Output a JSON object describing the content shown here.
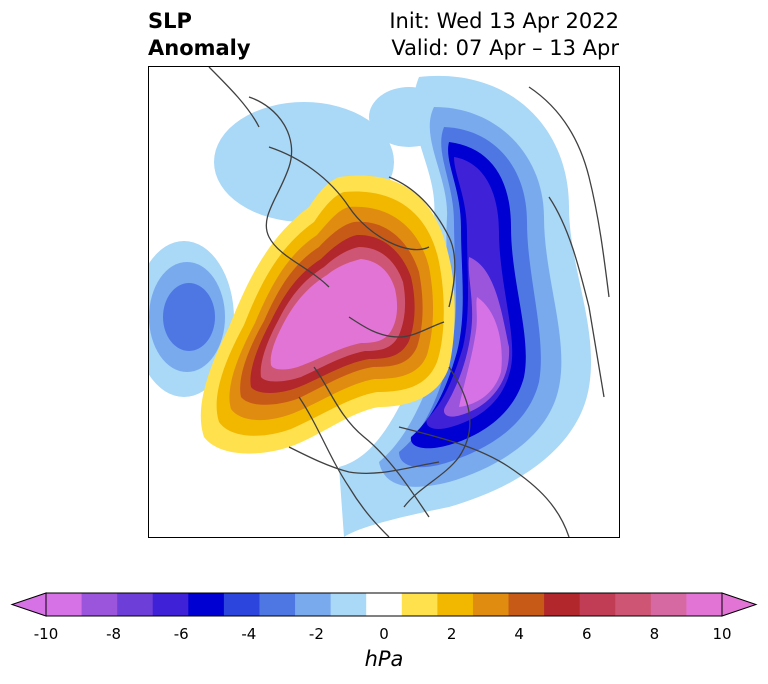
{
  "title": {
    "left_line1": "SLP",
    "left_line2": "Anomaly",
    "right_line1": "Init: Wed 13 Apr 2022",
    "right_line2": "Valid: 07 Apr – 13 Apr"
  },
  "colorbar": {
    "unit": "hPa",
    "ticks": [
      "-10",
      "-8",
      "-6",
      "-4",
      "-2",
      "0",
      "2",
      "4",
      "6",
      "8",
      "10"
    ],
    "levels": [
      -10,
      -9,
      -8,
      -7,
      -6,
      -5,
      -4,
      -3,
      -2,
      -1,
      1,
      2,
      3,
      4,
      5,
      6,
      7,
      8,
      9,
      10
    ],
    "colors": [
      "#d672e6",
      "#9b55dd",
      "#6e3ed9",
      "#3f21d8",
      "#0000d2",
      "#2b45dd",
      "#4f77e4",
      "#79aaee",
      "#aad8f7",
      "#ffffff",
      "#ffe14d",
      "#f2b800",
      "#e08c10",
      "#c85a18",
      "#b1272b",
      "#c13d55",
      "#cf5575",
      "#d769a2",
      "#e274d6"
    ]
  },
  "map_colors": {
    "land_border": "#404040",
    "pos_max": "#e36fdc",
    "neg_max": "#1f0fd8"
  }
}
